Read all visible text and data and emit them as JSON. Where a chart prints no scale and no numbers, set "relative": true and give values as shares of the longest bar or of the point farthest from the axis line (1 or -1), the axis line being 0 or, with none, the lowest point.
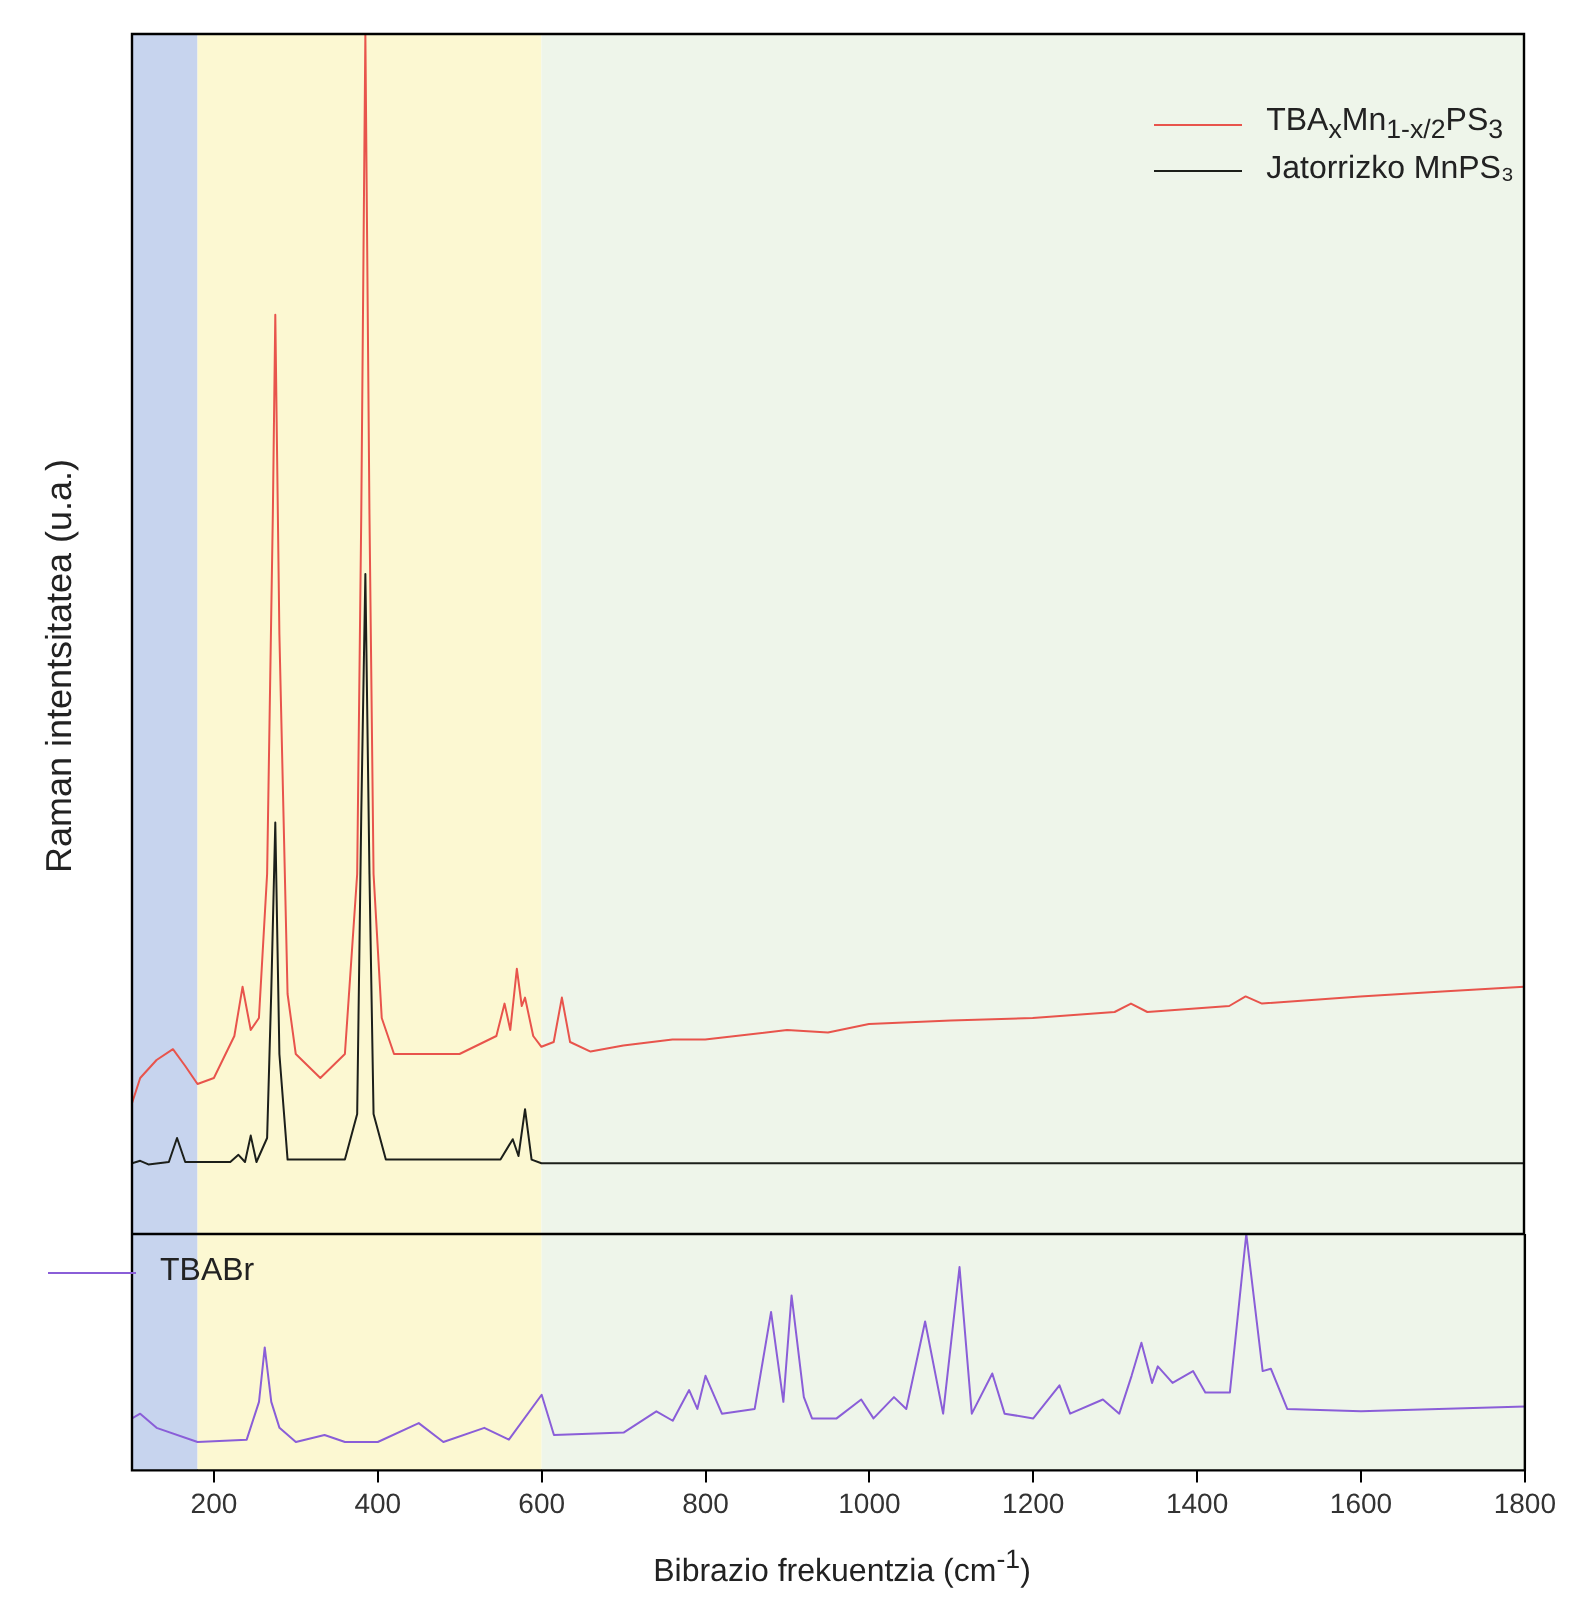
{
  "chart_data": [
    {
      "type": "line",
      "ylabel": "Raman intentsitatea (u.a.)",
      "relative": true,
      "marker": "none",
      "legend": "top right",
      "tick_labels": false,
      "xlim": [
        100,
        1800
      ],
      "xticks": [
        200,
        400,
        600,
        800,
        1000,
        1200,
        1400,
        1600,
        1800
      ],
      "bands": [
        {
          "axis": "x",
          "from": 100,
          "to": 180,
          "color": "#c7d4ee"
        },
        {
          "axis": "x",
          "from": 180,
          "to": 600,
          "color": "#fcf8d2"
        },
        {
          "axis": "x",
          "from": 600,
          "to": 1800,
          "color": "#eef5ea"
        }
      ],
      "series": [
        {
          "name": "TBA$_{x}$Mn$_{1-x/2}$PS$_{3}$",
          "color": "#e8544c",
          "x": [
            100,
            110,
            130,
            150,
            165,
            180,
            200,
            225,
            235,
            245,
            255,
            265,
            272,
            275,
            280,
            290,
            300,
            330,
            360,
            375,
            380,
            385,
            390,
            395,
            405,
            420,
            500,
            545,
            555,
            562,
            570,
            576,
            580,
            590,
            600,
            615,
            625,
            635,
            660,
            700,
            760,
            800,
            900,
            950,
            1000,
            1100,
            1200,
            1300,
            1320,
            1340,
            1440,
            1460,
            1480,
            1600,
            1700,
            1800
          ],
          "values": [
            0.109,
            0.13,
            0.145,
            0.154,
            0.14,
            0.125,
            0.13,
            0.165,
            0.206,
            0.17,
            0.18,
            0.3,
            0.6,
            0.766,
            0.5,
            0.2,
            0.15,
            0.13,
            0.15,
            0.3,
            0.6,
            1,
            0.6,
            0.3,
            0.18,
            0.15,
            0.15,
            0.165,
            0.192,
            0.17,
            0.221,
            0.19,
            0.197,
            0.165,
            0.156,
            0.16,
            0.197,
            0.16,
            0.152,
            0.157,
            0.162,
            0.162,
            0.17,
            0.168,
            0.175,
            0.178,
            0.18,
            0.185,
            0.192,
            0.185,
            0.19,
            0.198,
            0.192,
            0.198,
            0.202,
            0.206
          ]
        },
        {
          "name": "Jatorrizko MnPS₃",
          "color": "#1c1f1a",
          "x": [
            100,
            110,
            120,
            145,
            155,
            165,
            220,
            230,
            238,
            245,
            252,
            265,
            270,
            275,
            280,
            290,
            360,
            375,
            380,
            385,
            390,
            395,
            410,
            550,
            565,
            572,
            580,
            588,
            600,
            1800
          ],
          "values": [
            0.059,
            0.061,
            0.058,
            0.06,
            0.08,
            0.06,
            0.06,
            0.066,
            0.06,
            0.082,
            0.06,
            0.08,
            0.2,
            0.343,
            0.15,
            0.062,
            0.062,
            0.1,
            0.35,
            0.55,
            0.3,
            0.1,
            0.062,
            0.062,
            0.079,
            0.065,
            0.104,
            0.062,
            0.059,
            0.059
          ]
        }
      ]
    },
    {
      "type": "line",
      "xlabel": "Bibrazio frekuentzia (cm$^{-1}$)",
      "relative": true,
      "marker": "none",
      "legend": "top left",
      "tick_labels": "x",
      "xlim": [
        100,
        1800
      ],
      "xticks": [
        200,
        400,
        600,
        800,
        1000,
        1200,
        1400,
        1600,
        1800
      ],
      "bands": [
        {
          "axis": "x",
          "from": 100,
          "to": 180,
          "color": "#c7d4ee"
        },
        {
          "axis": "x",
          "from": 180,
          "to": 600,
          "color": "#fcf8d2"
        },
        {
          "axis": "x",
          "from": 600,
          "to": 1800,
          "color": "#eef5ea"
        }
      ],
      "series": [
        {
          "name": "TBABr",
          "color": "#8a5ed8",
          "x": [
            100,
            110,
            130,
            180,
            240,
            255,
            262,
            270,
            280,
            300,
            335,
            360,
            400,
            450,
            480,
            530,
            560,
            600,
            615,
            700,
            740,
            760,
            780,
            790,
            800,
            820,
            860,
            880,
            895,
            905,
            920,
            930,
            960,
            990,
            1005,
            1030,
            1045,
            1068,
            1090,
            1110,
            1125,
            1150,
            1165,
            1200,
            1232,
            1245,
            1285,
            1305,
            1320,
            1332,
            1345,
            1352,
            1370,
            1395,
            1410,
            1440,
            1460,
            1480,
            1490,
            1510,
            1600,
            1800
          ],
          "values": [
            0.22,
            0.24,
            0.18,
            0.12,
            0.13,
            0.29,
            0.52,
            0.29,
            0.18,
            0.12,
            0.15,
            0.12,
            0.12,
            0.2,
            0.12,
            0.18,
            0.13,
            0.32,
            0.15,
            0.16,
            0.25,
            0.21,
            0.34,
            0.26,
            0.4,
            0.24,
            0.26,
            0.67,
            0.29,
            0.74,
            0.31,
            0.22,
            0.22,
            0.3,
            0.22,
            0.31,
            0.26,
            0.63,
            0.24,
            0.86,
            0.24,
            0.41,
            0.24,
            0.22,
            0.36,
            0.24,
            0.3,
            0.24,
            0.4,
            0.54,
            0.37,
            0.44,
            0.37,
            0.42,
            0.33,
            0.33,
            1,
            0.42,
            0.43,
            0.26,
            0.25,
            0.27
          ]
        }
      ]
    }
  ]
}
